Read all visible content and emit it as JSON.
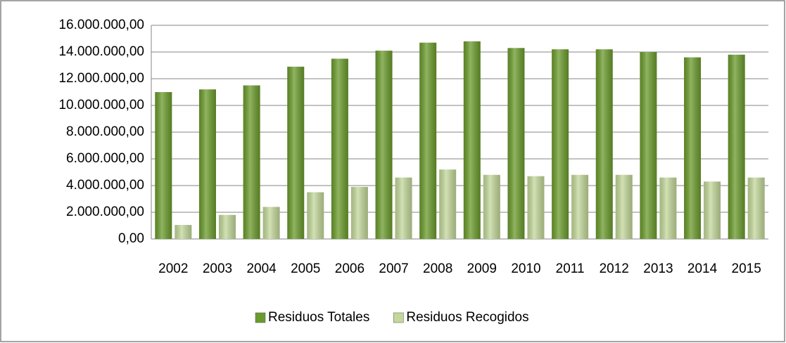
{
  "chart_data": {
    "type": "bar",
    "categories": [
      "2002",
      "2003",
      "2004",
      "2005",
      "2006",
      "2007",
      "2008",
      "2009",
      "2010",
      "2011",
      "2012",
      "2013",
      "2014",
      "2015"
    ],
    "series": [
      {
        "name": "Residuos Totales",
        "color": "#6b9b2c",
        "values": [
          11000000,
          11200000,
          11500000,
          12900000,
          13500000,
          14100000,
          14700000,
          14800000,
          14300000,
          14200000,
          14200000,
          14000000,
          13600000,
          13800000
        ]
      },
      {
        "name": "Residuos Recogidos",
        "color": "#c3d89a",
        "values": [
          1050000,
          1800000,
          2400000,
          3500000,
          3900000,
          4600000,
          5200000,
          4800000,
          4700000,
          4800000,
          4800000,
          4600000,
          4300000,
          4600000
        ]
      }
    ],
    "ylim": [
      0,
      16000000
    ],
    "yticks": [
      {
        "value": 0,
        "label": "0,00"
      },
      {
        "value": 2000000,
        "label": "2.000.000,00"
      },
      {
        "value": 4000000,
        "label": "4.000.000,00"
      },
      {
        "value": 6000000,
        "label": "6.000.000,00"
      },
      {
        "value": 8000000,
        "label": "8.000.000,00"
      },
      {
        "value": 10000000,
        "label": "10.000.000,00"
      },
      {
        "value": 12000000,
        "label": "12.000.000,00"
      },
      {
        "value": 14000000,
        "label": "14.000.000,00"
      },
      {
        "value": 16000000,
        "label": "16.000.000,00"
      }
    ],
    "grid": true,
    "legend": "bottom"
  }
}
